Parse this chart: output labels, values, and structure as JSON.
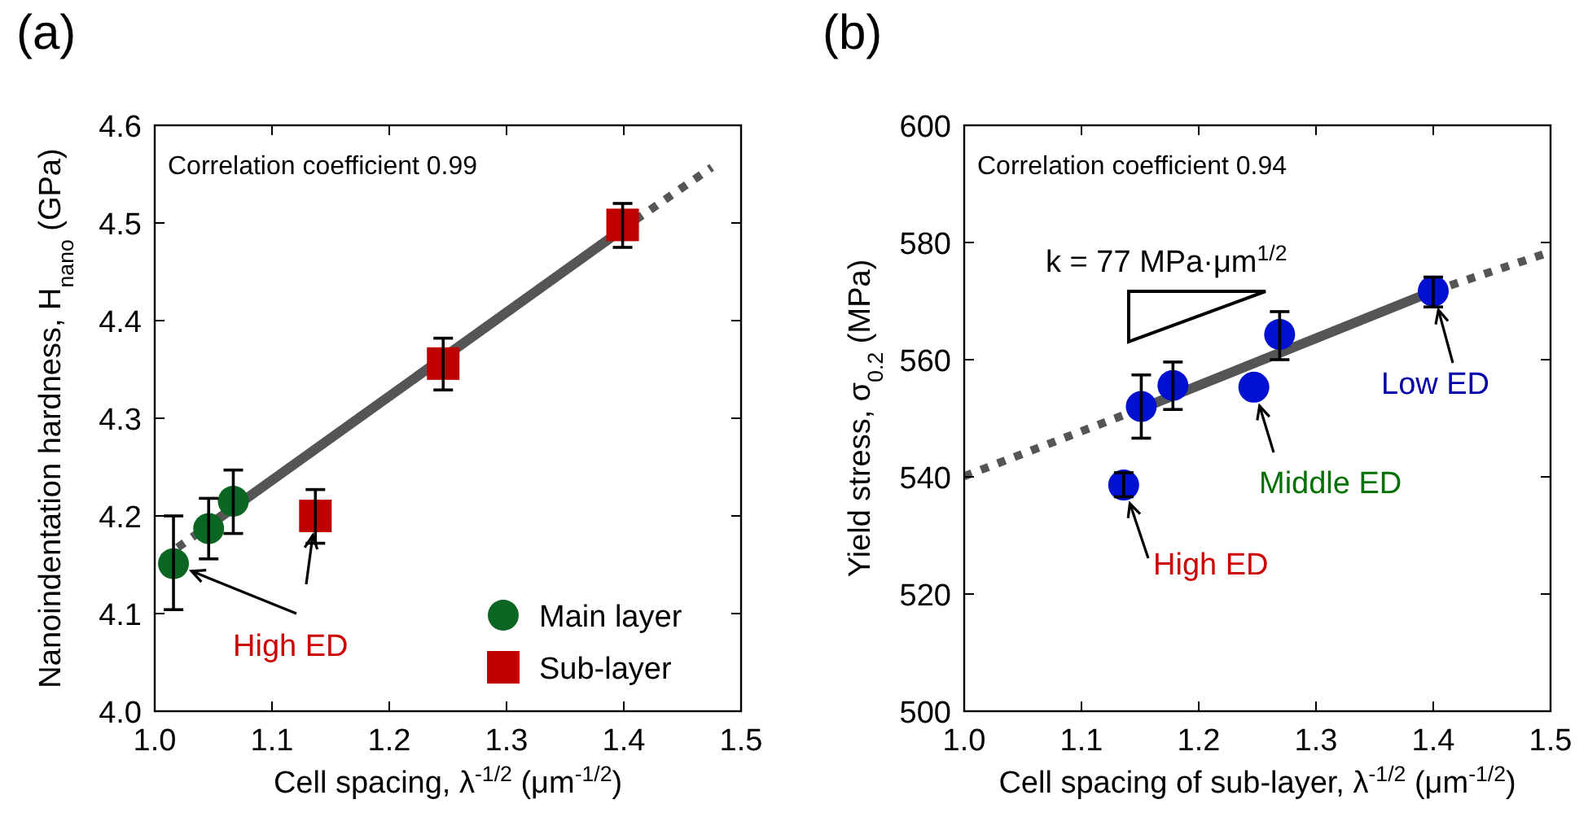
{
  "chart_data": [
    {
      "type": "scatter",
      "title": "(a)",
      "xlabel": "Cell spacing, λ$^{-1/2}$ (μm$^{-1/2}$)",
      "ylabel": "Nanoindentation hardness, H$_{nano}$ (GPa)",
      "xlim": [
        1.0,
        1.5
      ],
      "ylim": [
        4.0,
        4.6
      ],
      "xticks": [
        {
          "value": 1.0,
          "label": "1.0"
        },
        1.1,
        1.2,
        1.3,
        1.4,
        1.5
      ],
      "yticks": [
        {
          "value": 4.0,
          "label": "4.0"
        },
        4.1,
        4.2,
        4.3,
        4.4,
        4.5,
        4.6
      ],
      "legend": "bottom right",
      "series": [
        {
          "name": "Main layer",
          "marker": "circle",
          "color": "#0b6623",
          "x": [
            1.016,
            1.046,
            1.067
          ],
          "values": [
            4.151,
            4.187,
            4.215
          ],
          "errors": [
            [
              4.104,
              4.2
            ],
            [
              4.156,
              4.218
            ],
            [
              4.182,
              4.247
            ]
          ]
        },
        {
          "name": "Sub-layer",
          "marker": "square",
          "color": "#c00000",
          "x": [
            1.137,
            1.246,
            1.399
          ],
          "values": [
            4.2,
            4.356,
            4.498
          ],
          "errors": [
            [
              4.172,
              4.227
            ],
            [
              4.329,
              4.382
            ],
            [
              4.475,
              4.52
            ]
          ]
        },
        {
          "type": "line",
          "line_style": "dotted",
          "color": "#555555",
          "x": [
            1.007,
            1.04
          ],
          "values": [
            4.157,
            4.185
          ]
        },
        {
          "type": "line",
          "line_style": "solid",
          "color": "#555555",
          "x": [
            1.04,
            1.41
          ],
          "values": [
            4.185,
            4.503
          ]
        },
        {
          "type": "line",
          "line_style": "dotted",
          "color": "#555555",
          "x": [
            1.41,
            1.475
          ],
          "values": [
            4.503,
            4.557
          ]
        }
      ],
      "annotations": [
        "Correlation coefficient 0.99",
        {
          "text": "High ED",
          "x": 1.016,
          "y": 4.151
        }
      ]
    },
    {
      "type": "scatter",
      "title": "(b)",
      "xlabel": "Cell spacing of sub-layer, λ$^{-1/2}$ (μm$^{-1/2}$)",
      "ylabel": "Yield stress, σ$_{0.2}$ (MPa)",
      "xlim": [
        1.0,
        1.5
      ],
      "ylim": [
        500,
        600
      ],
      "xticks": [
        {
          "value": 1.0,
          "label": "1.0"
        },
        1.1,
        1.2,
        1.3,
        1.4,
        1.5
      ],
      "yticks": [
        500,
        520,
        540,
        560,
        580,
        600
      ],
      "series": [
        {
          "marker": "circle",
          "color": "#0010d0",
          "x": [
            1.136,
            1.151,
            1.178,
            1.247,
            1.269,
            1.4
          ],
          "values": [
            538.6,
            552.0,
            555.6,
            555.3,
            564.3,
            571.7
          ],
          "errors": [
            [
              536.6,
              540.7
            ],
            [
              546.6,
              557.4
            ],
            [
              551.5,
              559.6
            ],
            null,
            [
              560.0,
              568.2
            ],
            [
              569.0,
              574.1
            ]
          ]
        },
        {
          "type": "line",
          "line_style": "dotted",
          "color": "#555555",
          "x": [
            1.0,
            1.159
          ],
          "values": [
            540.1,
            552.3
          ]
        },
        {
          "type": "line",
          "line_style": "solid",
          "color": "#555555",
          "x": [
            1.159,
            1.4
          ],
          "values": [
            552.3,
            571.7
          ]
        },
        {
          "type": "line",
          "line_style": "dotted",
          "color": "#555555",
          "x": [
            1.4,
            1.5
          ],
          "values": [
            571.7,
            578.4
          ]
        }
      ],
      "annotations": [
        "Correlation coefficient 0.94",
        "k = 77 MPa·μm$^{1/2}$",
        {
          "text": "High ED",
          "x": 1.136,
          "y": 538.6
        },
        {
          "text": "Middle ED",
          "x": 1.247,
          "y": 555.3
        },
        {
          "text": "Low ED",
          "x": 1.4,
          "y": 571.7
        }
      ]
    }
  ]
}
